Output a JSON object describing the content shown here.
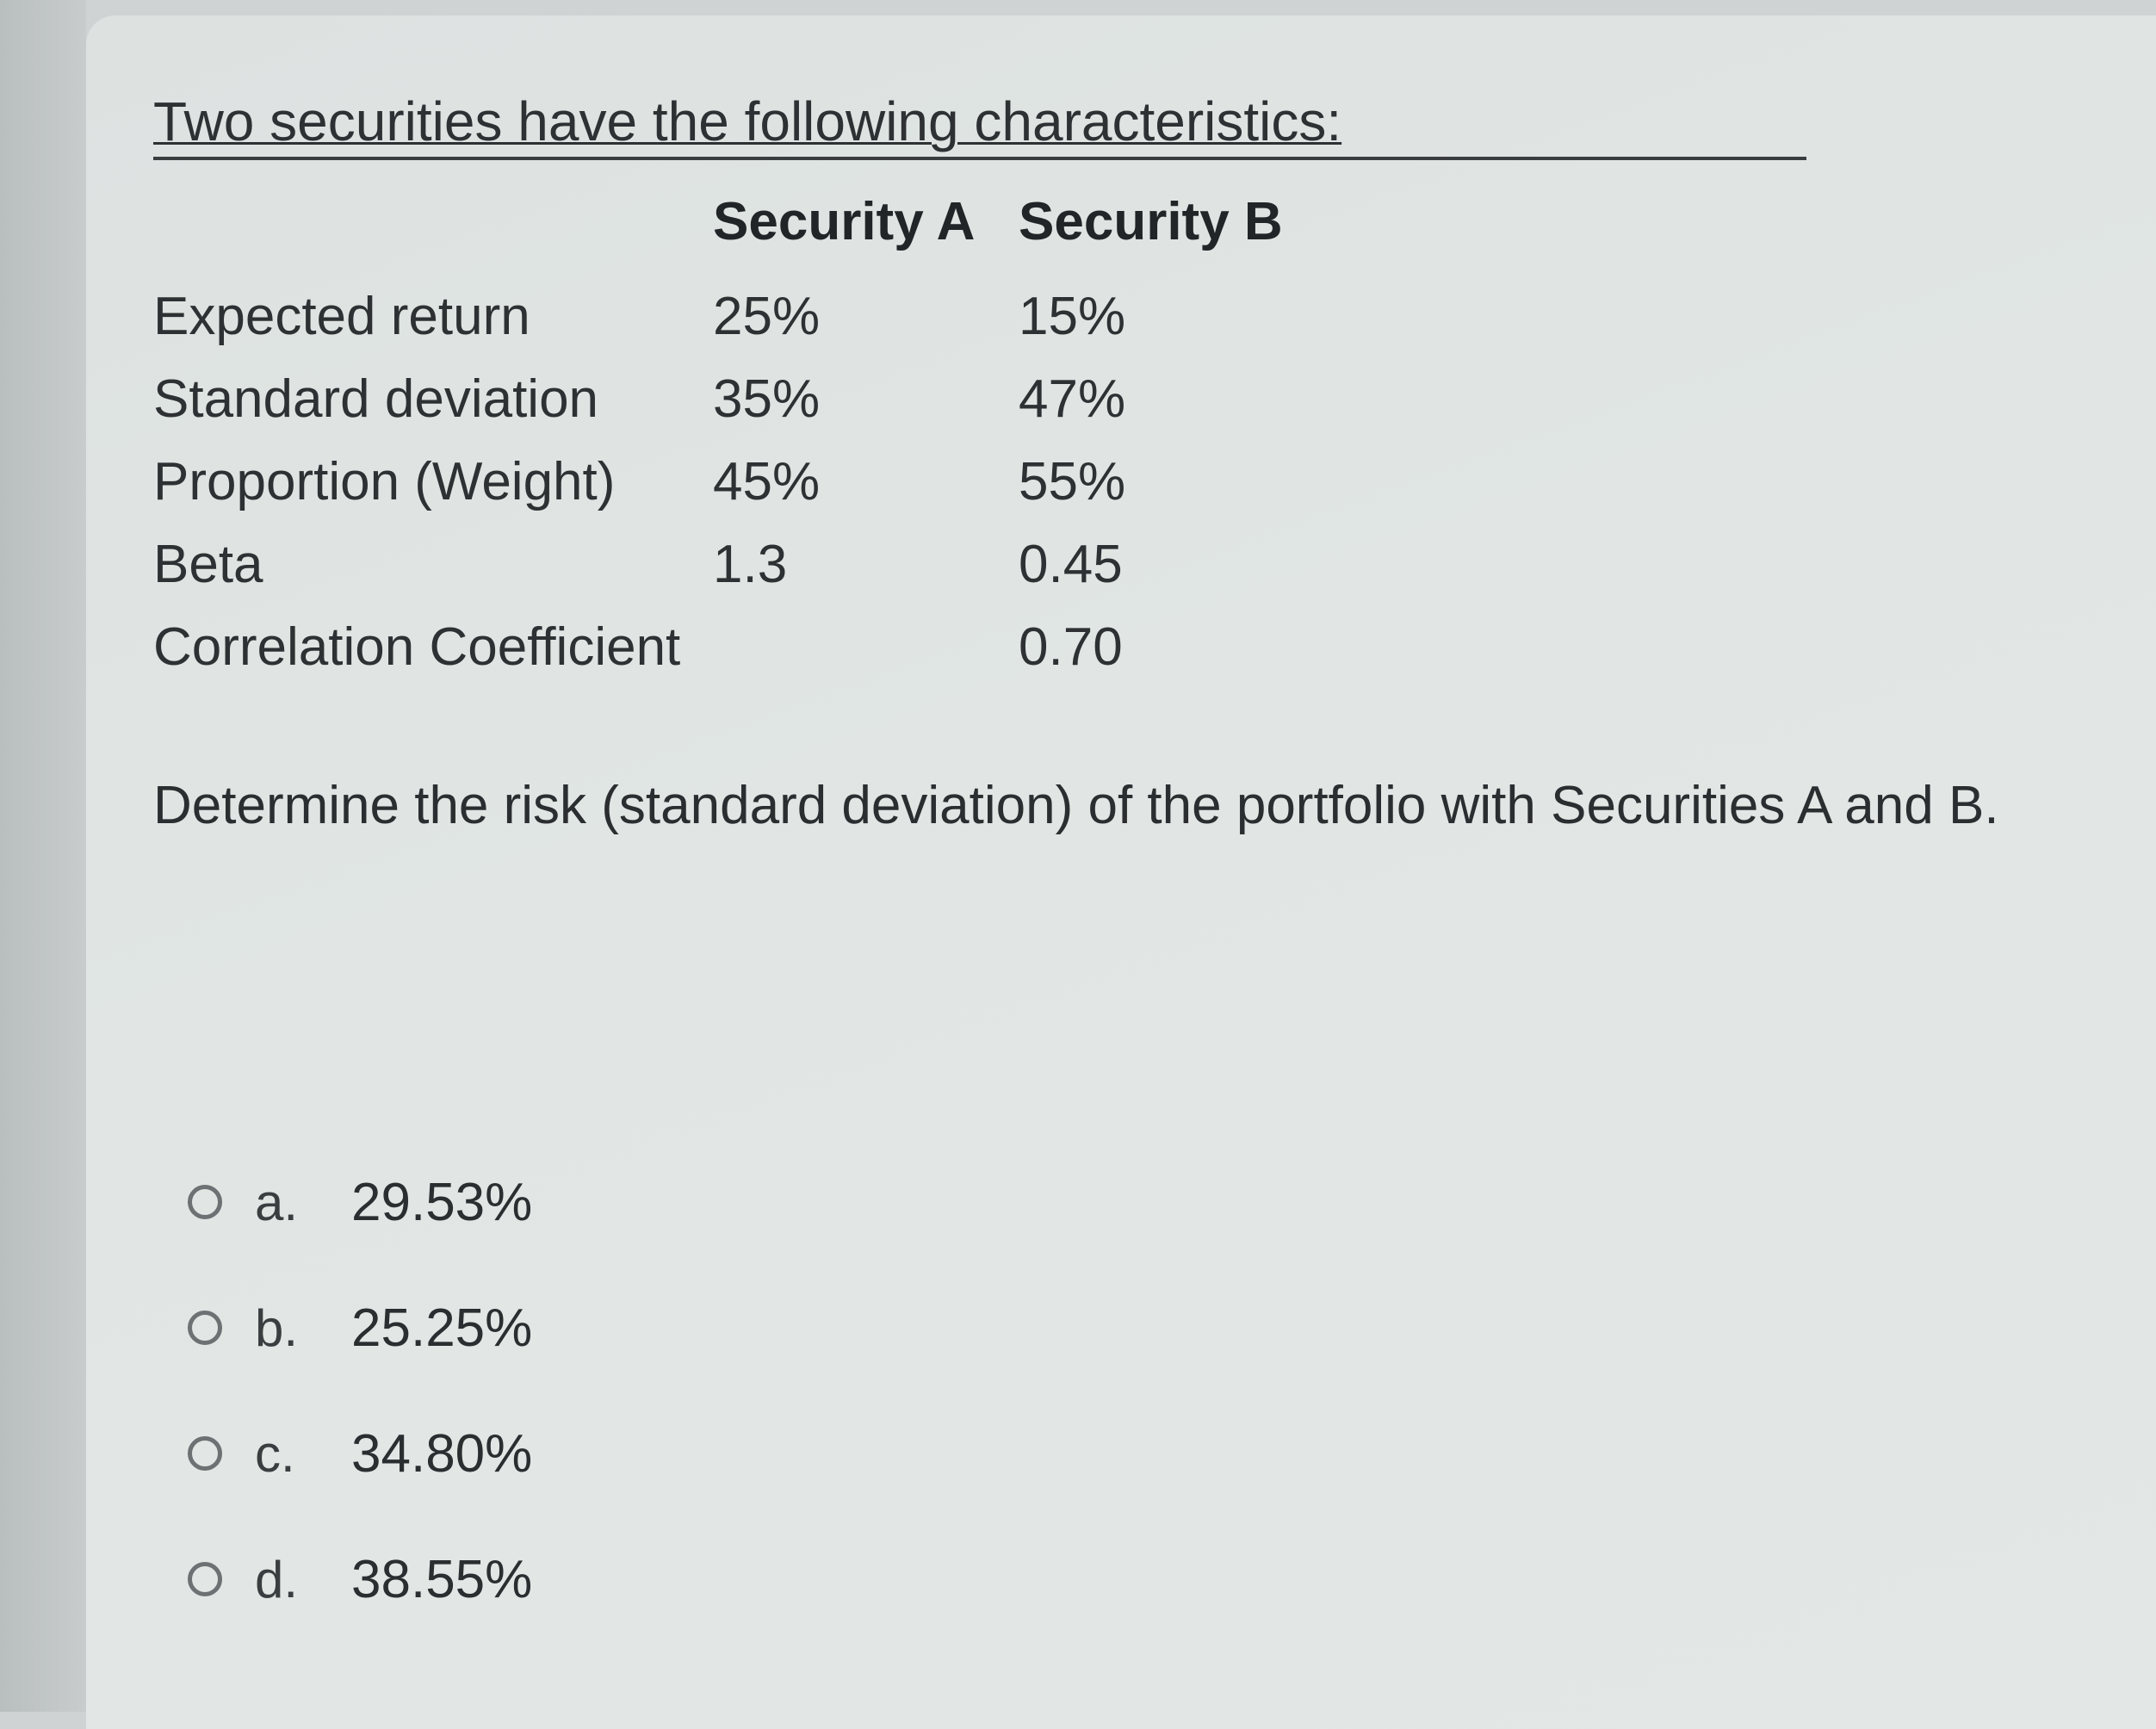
{
  "question": {
    "title": "Two securities have the following characteristics:",
    "columns": [
      "Security A",
      "Security B"
    ],
    "rows": [
      {
        "label": "Expected return",
        "a": "25%",
        "b": "15%"
      },
      {
        "label": "Standard deviation",
        "a": "35%",
        "b": "47%"
      },
      {
        "label": "Proportion (Weight)",
        "a": "45%",
        "b": "55%"
      },
      {
        "label": "Beta",
        "a": "1.3",
        "b": "0.45"
      },
      {
        "label": "Correlation Coefficient",
        "a": "",
        "b": "0.70"
      }
    ],
    "prompt": "Determine the risk (standard deviation) of the portfolio with Securities A and B."
  },
  "options": [
    {
      "letter": "a.",
      "value": "29.53%"
    },
    {
      "letter": "b.",
      "value": "25.25%"
    },
    {
      "letter": "c.",
      "value": "34.80%"
    },
    {
      "letter": "d.",
      "value": "38.55%"
    }
  ]
}
